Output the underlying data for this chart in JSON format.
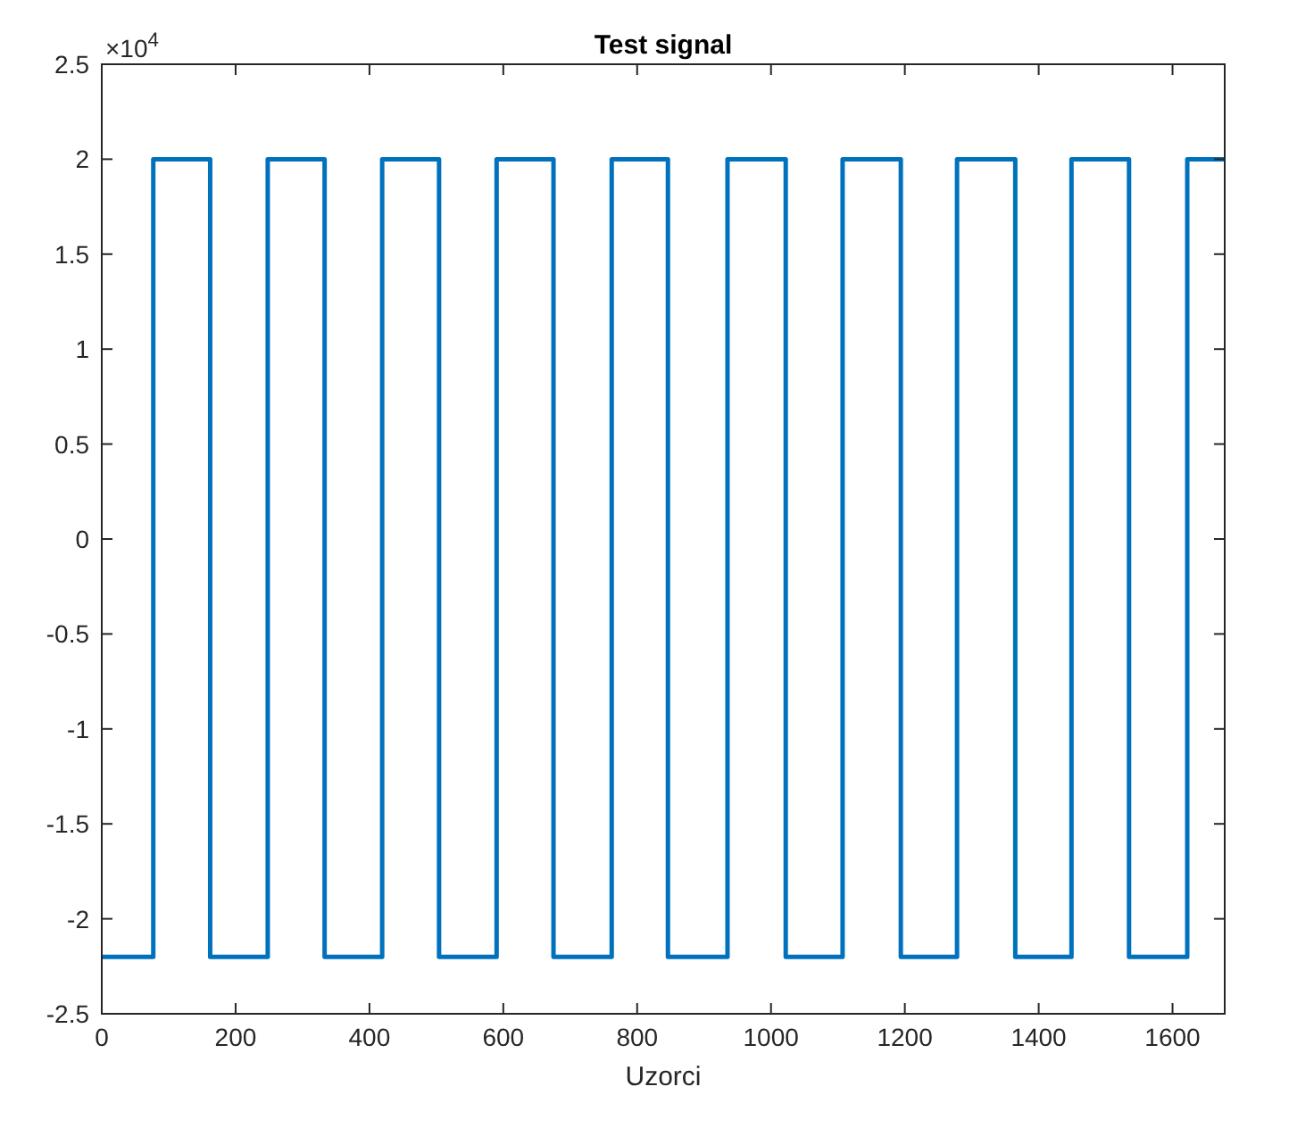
{
  "chart_data": {
    "type": "line",
    "title": "Test signal",
    "xlabel": "Uzorci",
    "annotations": [
      "×10$^{4}$"
    ],
    "x": [
      0,
      77,
      77,
      162,
      162,
      248,
      248,
      333,
      333,
      419,
      419,
      504,
      504,
      590,
      590,
      675,
      675,
      762,
      762,
      846,
      846,
      935,
      935,
      1022,
      1022,
      1107,
      1107,
      1194,
      1194,
      1278,
      1278,
      1365,
      1365,
      1449,
      1449,
      1535,
      1535,
      1622,
      1622,
      1678
    ],
    "series": [
      {
        "color": "#0072bd",
        "values": [
          -2.2,
          -2.2,
          2,
          2,
          -2.2,
          -2.2,
          2,
          2,
          -2.2,
          -2.2,
          2,
          2,
          -2.2,
          -2.2,
          2,
          2,
          -2.2,
          -2.2,
          2,
          2,
          -2.2,
          -2.2,
          2,
          2,
          -2.2,
          -2.2,
          2,
          2,
          -2.2,
          -2.2,
          2,
          2,
          -2.2,
          -2.2,
          2,
          2,
          -2.2,
          -2.2,
          2,
          2
        ]
      }
    ],
    "xlim": [
      0,
      1678
    ],
    "xticks": [
      0,
      200,
      400,
      600,
      800,
      1000,
      1200,
      1400,
      1600
    ],
    "ylim": [
      -2.5,
      2.5
    ],
    "yticks": [
      -2.5,
      -2,
      -1.5,
      -1,
      -0.5,
      0,
      0.5,
      1,
      1.5,
      2,
      2.5
    ],
    "grid": false,
    "marker": "none",
    "line_style": "solid"
  }
}
